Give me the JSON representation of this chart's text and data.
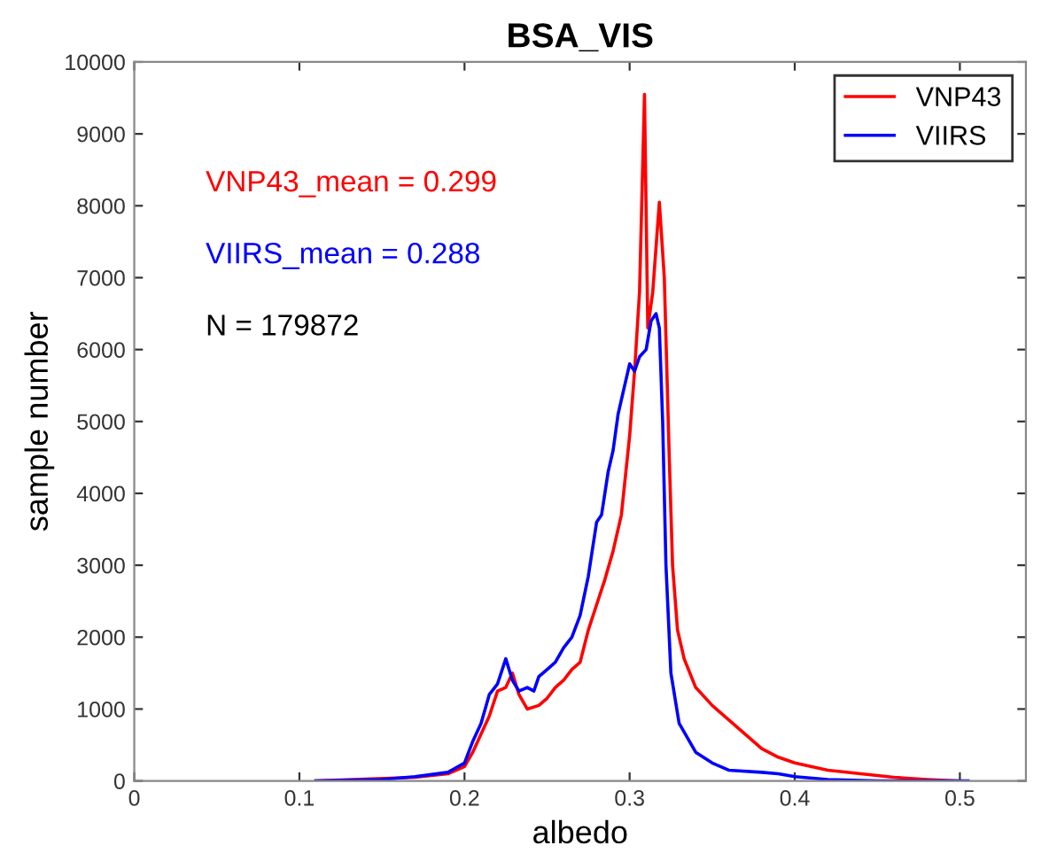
{
  "chart_data": {
    "type": "line",
    "title": "BSA_VIS",
    "xlabel": "albedo",
    "ylabel": "sample number",
    "annotations": [
      "VNP43_mean = 0.299",
      "VIIRS_mean = 0.288",
      "N = 179872"
    ],
    "xlim": [
      0,
      0.54
    ],
    "xticks": [
      0,
      0.1,
      0.2,
      0.3,
      0.4,
      0.5
    ],
    "ylim": [
      0,
      10000
    ],
    "yticks": [
      0,
      1000,
      2000,
      3000,
      4000,
      5000,
      6000,
      7000,
      8000,
      9000,
      10000
    ],
    "legend": "top right",
    "grid": false,
    "series": [
      {
        "name": "VNP43",
        "color": "#ff0000",
        "x": [
          0.11,
          0.17,
          0.19,
          0.2,
          0.205,
          0.21,
          0.215,
          0.22,
          0.225,
          0.229,
          0.233,
          0.238,
          0.245,
          0.25,
          0.255,
          0.26,
          0.265,
          0.27,
          0.275,
          0.28,
          0.285,
          0.29,
          0.295,
          0.3,
          0.303,
          0.306,
          0.309,
          0.311,
          0.314,
          0.318,
          0.321,
          0.324,
          0.326,
          0.329,
          0.333,
          0.34,
          0.35,
          0.36,
          0.37,
          0.38,
          0.39,
          0.4,
          0.42,
          0.44,
          0.46,
          0.48,
          0.5
        ],
        "values": [
          0,
          50,
          100,
          200,
          400,
          650,
          900,
          1250,
          1300,
          1500,
          1200,
          1000,
          1050,
          1150,
          1300,
          1400,
          1550,
          1650,
          2100,
          2450,
          2800,
          3200,
          3700,
          4800,
          5700,
          6800,
          9550,
          6300,
          6800,
          8050,
          7000,
          4500,
          3000,
          2100,
          1700,
          1300,
          1050,
          850,
          650,
          450,
          330,
          250,
          150,
          100,
          50,
          20,
          0
        ]
      },
      {
        "name": "VIIRS",
        "color": "#0000ff",
        "x": [
          0.11,
          0.15,
          0.17,
          0.19,
          0.2,
          0.205,
          0.21,
          0.215,
          0.22,
          0.225,
          0.229,
          0.233,
          0.238,
          0.242,
          0.245,
          0.25,
          0.255,
          0.26,
          0.265,
          0.27,
          0.275,
          0.28,
          0.283,
          0.287,
          0.29,
          0.293,
          0.297,
          0.3,
          0.303,
          0.306,
          0.31,
          0.313,
          0.316,
          0.318,
          0.32,
          0.322,
          0.325,
          0.33,
          0.335,
          0.34,
          0.35,
          0.36,
          0.38,
          0.39,
          0.4,
          0.42,
          0.45,
          0.5,
          0.505
        ],
        "values": [
          0,
          20,
          60,
          120,
          250,
          550,
          800,
          1200,
          1350,
          1700,
          1400,
          1250,
          1300,
          1250,
          1450,
          1550,
          1650,
          1850,
          2000,
          2300,
          2850,
          3600,
          3700,
          4300,
          4600,
          5100,
          5500,
          5800,
          5700,
          5900,
          6000,
          6400,
          6500,
          6300,
          5000,
          3000,
          1500,
          800,
          600,
          400,
          250,
          150,
          120,
          100,
          60,
          20,
          0,
          0,
          0
        ]
      }
    ]
  }
}
